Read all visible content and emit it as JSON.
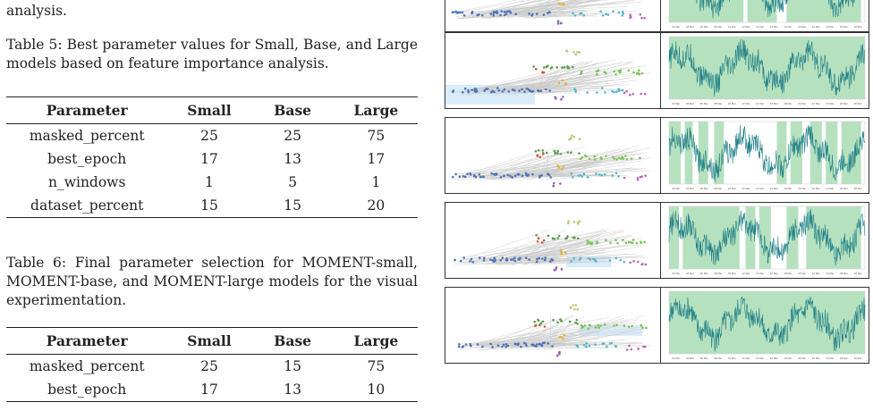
{
  "fragment_top": "analysis.",
  "table5": {
    "caption": "Table 5: Best parameter values for Small, Base, and Large models based on feature importance analysis.",
    "headers": [
      "Parameter",
      "Small",
      "Base",
      "Large"
    ],
    "rows": [
      [
        "masked_percent",
        "25",
        "25",
        "75"
      ],
      [
        "best_epoch",
        "17",
        "13",
        "17"
      ],
      [
        "n_windows",
        "1",
        "5",
        "1"
      ],
      [
        "dataset_percent",
        "15",
        "15",
        "20"
      ]
    ]
  },
  "table6": {
    "caption": "Table 6: Final parameter selection for MOMENT-small, MOMENT-base, and MOMENT-large models for the visual experimentation.",
    "headers": [
      "Parameter",
      "Small",
      "Base",
      "Large"
    ],
    "rows": [
      [
        "masked_percent",
        "25",
        "15",
        "75"
      ],
      [
        "best_epoch",
        "17",
        "13",
        "10"
      ]
    ]
  },
  "figure": {
    "rows": 5,
    "x_ticks": [
      "02 Mar",
      "04 Mar",
      "06 Mar",
      "08 Mar",
      "10 Mar",
      "12 Mar",
      "14 Mar",
      "16 Mar",
      "18 Mar",
      "20 Mar",
      "22 Mar",
      "24 Mar",
      "26 Mar",
      "28 Mar"
    ],
    "colors": {
      "highlight": "#a9dcb4",
      "series": "#1f7f86",
      "graph_edge": "#c9c9c9"
    }
  }
}
